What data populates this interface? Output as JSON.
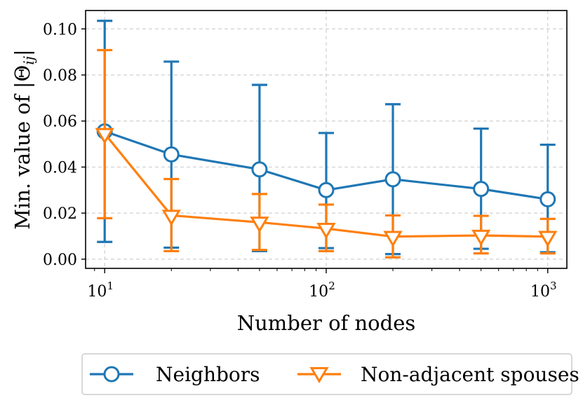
{
  "chart_data": {
    "type": "line",
    "title": "",
    "xlabel": "Number of nodes",
    "ylabel_prefix": "Min. value of |Θ",
    "ylabel_sub": "ij",
    "ylabel_suffix": "|",
    "xscale": "log",
    "xlim": [
      8.2,
      1220
    ],
    "ylim": [
      -0.004,
      0.108
    ],
    "x": [
      10,
      20,
      50,
      100,
      200,
      500,
      1000
    ],
    "yticks": [
      0.0,
      0.02,
      0.04,
      0.06,
      0.08,
      0.1
    ],
    "ytick_labels": [
      "0.00",
      "0.02",
      "0.04",
      "0.06",
      "0.08",
      "0.10"
    ],
    "xticks": [
      10,
      100,
      1000
    ],
    "xtick_labels": [
      {
        "base": "10",
        "exp": "1"
      },
      {
        "base": "10",
        "exp": "2"
      },
      {
        "base": "10",
        "exp": "3"
      }
    ],
    "grid": true,
    "legend_position": "bottom-center (below plot)",
    "series": [
      {
        "name": "Neighbors",
        "color": "#1f77b4",
        "marker": "circle",
        "values": [
          0.0555,
          0.0455,
          0.039,
          0.03,
          0.0347,
          0.0305,
          0.026
        ],
        "err_low": [
          0.0075,
          0.005,
          0.0035,
          0.0048,
          0.0022,
          0.0045,
          0.003
        ],
        "err_high": [
          0.1035,
          0.0858,
          0.0757,
          0.0548,
          0.0673,
          0.0567,
          0.0497
        ]
      },
      {
        "name": "Non-adjacent spouses",
        "color": "#ff7f0e",
        "marker": "triangle-down",
        "values": [
          0.0545,
          0.019,
          0.016,
          0.0133,
          0.0098,
          0.0103,
          0.0098
        ],
        "err_low": [
          0.0178,
          0.0035,
          0.004,
          0.0035,
          0.0008,
          0.0025,
          0.0025
        ],
        "err_high": [
          0.0908,
          0.0348,
          0.0283,
          0.0237,
          0.019,
          0.0188,
          0.0175
        ]
      }
    ]
  }
}
